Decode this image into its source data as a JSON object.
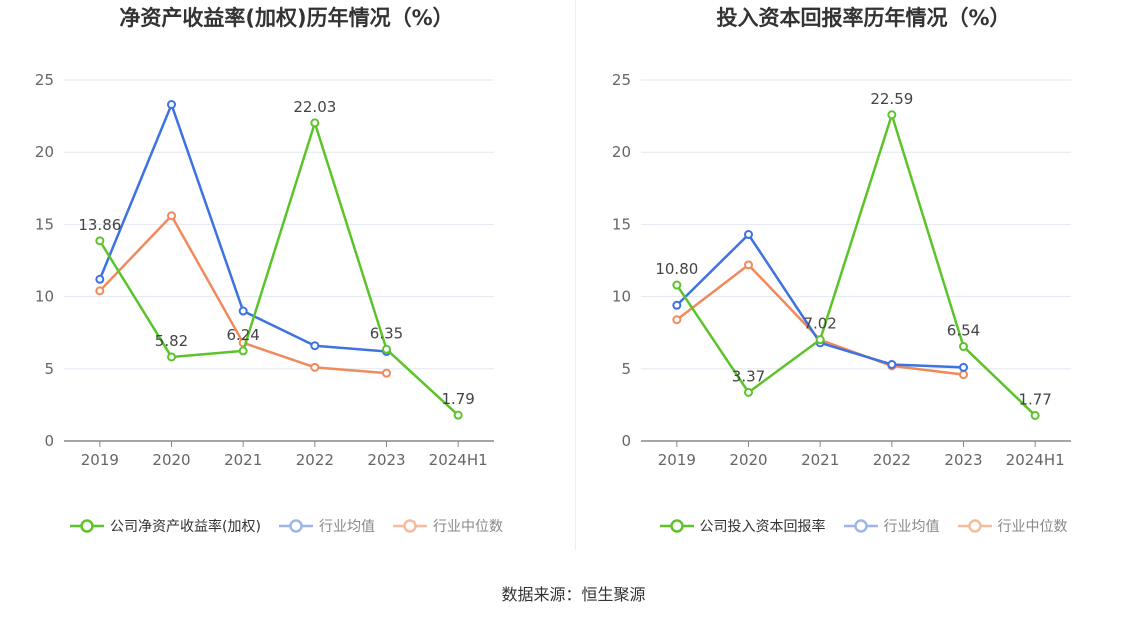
{
  "source": "数据来源：恒生聚源",
  "chart_data": [
    {
      "type": "line",
      "title": "净资产收益率(加权)历年情况（%）",
      "categories": [
        "2019",
        "2020",
        "2021",
        "2022",
        "2023",
        "2024H1"
      ],
      "ylim": [
        0,
        25
      ],
      "yticks": [
        0,
        5,
        10,
        15,
        20,
        25
      ],
      "grid": true,
      "legend_position": "bottom",
      "series": [
        {
          "name": "公司净资产收益率(加权)",
          "color": "#5cc42a",
          "values": [
            13.86,
            5.82,
            6.24,
            22.03,
            6.35,
            1.79
          ],
          "labels": [
            "13.86",
            "5.82",
            "6.24",
            "22.03",
            "6.35",
            "1.79"
          ]
        },
        {
          "name": "行业均值",
          "color": "#3d72e0",
          "values": [
            11.2,
            23.3,
            9.0,
            6.6,
            6.2,
            null
          ],
          "labels": []
        },
        {
          "name": "行业中位数",
          "color": "#f08a5d",
          "values": [
            10.4,
            15.6,
            6.8,
            5.1,
            4.7,
            null
          ],
          "labels": []
        }
      ]
    },
    {
      "type": "line",
      "title": "投入资本回报率历年情况（%）",
      "categories": [
        "2019",
        "2020",
        "2021",
        "2022",
        "2023",
        "2024H1"
      ],
      "ylim": [
        0,
        25
      ],
      "yticks": [
        0,
        5,
        10,
        15,
        20,
        25
      ],
      "grid": true,
      "legend_position": "bottom",
      "series": [
        {
          "name": "公司投入资本回报率",
          "color": "#5cc42a",
          "values": [
            10.8,
            3.37,
            7.02,
            22.59,
            6.54,
            1.77
          ],
          "labels": [
            "10.80",
            "3.37",
            "7.02",
            "22.59",
            "6.54",
            "1.77"
          ]
        },
        {
          "name": "行业均值",
          "color": "#3d72e0",
          "values": [
            9.4,
            14.3,
            6.8,
            5.3,
            5.1,
            null
          ],
          "labels": []
        },
        {
          "name": "行业中位数",
          "color": "#f08a5d",
          "values": [
            8.4,
            12.2,
            7.0,
            5.2,
            4.6,
            null
          ],
          "labels": []
        }
      ]
    }
  ]
}
